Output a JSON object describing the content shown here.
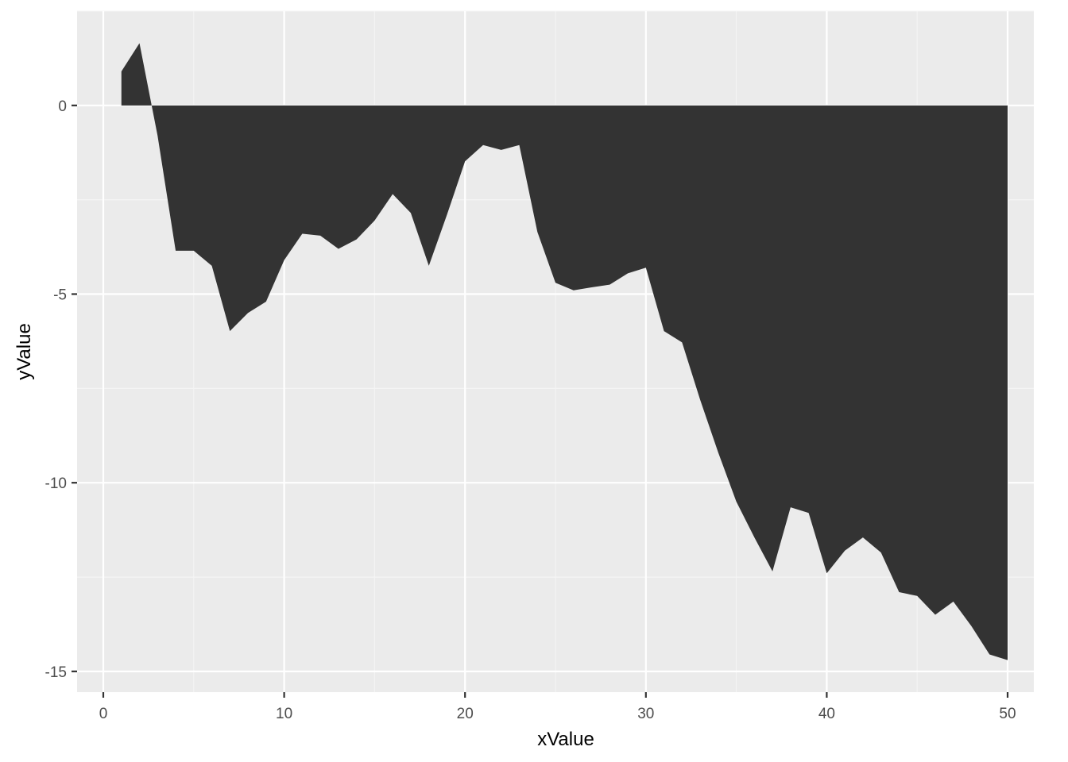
{
  "chart_data": {
    "type": "area",
    "title": "",
    "xlabel": "xValue",
    "ylabel": "yValue",
    "xlim": [
      -1.45,
      51.45
    ],
    "ylim": [
      -15.55,
      2.5
    ],
    "grid": true,
    "legend": "none",
    "x_ticks": [
      0,
      10,
      20,
      30,
      40,
      50
    ],
    "y_ticks": [
      0,
      -5,
      -10,
      -15
    ],
    "x_tick_labels": [
      "0",
      "10",
      "20",
      "30",
      "40",
      "50"
    ],
    "y_tick_labels": [
      "0",
      "-5",
      "-10",
      "-15"
    ],
    "x": [
      1,
      2,
      3,
      4,
      5,
      6,
      7,
      8,
      9,
      10,
      11,
      12,
      13,
      14,
      15,
      16,
      17,
      18,
      19,
      20,
      21,
      22,
      23,
      24,
      25,
      26,
      27,
      28,
      29,
      30,
      31,
      32,
      33,
      34,
      35,
      36,
      37,
      38,
      39,
      40,
      41,
      42,
      43,
      44,
      45,
      46,
      47,
      48,
      49,
      50
    ],
    "series": [
      {
        "values": [
          0.9,
          1.65,
          -0.8,
          -3.85,
          -3.85,
          -4.25,
          -5.98,
          -5.5,
          -5.2,
          -4.1,
          -3.4,
          -3.45,
          -3.8,
          -3.55,
          -3.05,
          -2.35,
          -2.85,
          -4.25,
          -2.9,
          -1.48,
          -1.05,
          -1.18,
          -1.05,
          -3.35,
          -4.7,
          -4.9,
          -4.82,
          -4.75,
          -4.45,
          -4.3,
          -5.98,
          -6.28,
          -7.8,
          -9.2,
          -10.5,
          -11.45,
          -12.35,
          -10.65,
          -10.8,
          -12.4,
          -11.8,
          -11.45,
          -11.85,
          -12.9,
          -13,
          -13.5,
          -13.15,
          -13.8,
          -14.55,
          -14.7
        ]
      }
    ],
    "colors": {
      "panel_bg": "#ebebeb",
      "grid_major": "#ffffff",
      "grid_minor": "#f5f5f5",
      "fill": "#333333",
      "tick": "#333333"
    }
  }
}
